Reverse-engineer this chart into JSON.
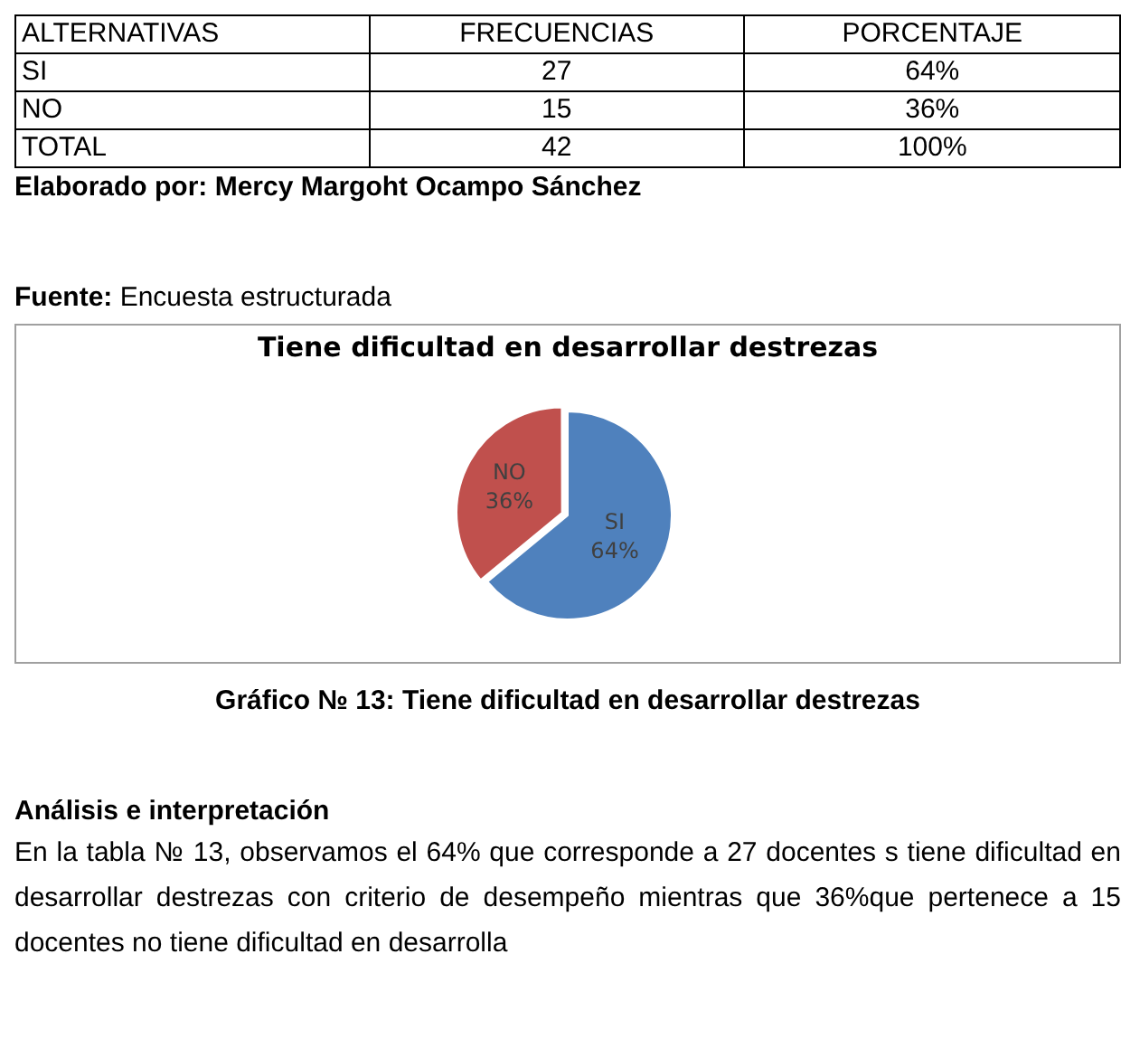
{
  "chart_data": {
    "type": "pie",
    "title": "Tiene dificultad en desarrollar destrezas",
    "categories": [
      "SI",
      "NO"
    ],
    "values": [
      64,
      36
    ],
    "value_labels": [
      "64%",
      "36%"
    ],
    "colors": [
      "#4f81bd",
      "#c0504d"
    ],
    "legend": false,
    "annotations": [
      "ALTERNATIVAS\tFRECUENCIAS\tPORCENTAJE",
      "SI\t27\t64%",
      "NO\t15\t36%",
      "TOTAL\t42\t100%",
      "Elaborado por: Mercy Margoht Ocampo Sánchez",
      "Fuente: Encuesta estructurada",
      "Gráfico  № 13: Tiene dificultad en desarrollar destrezas",
      "Análisis e interpretación",
      "En la tabla № 13, observamos  el 64% que corresponde a 27 docentes s tiene dificultad en desarrollar destrezas con criterio de desempeño mientras que  36%que pertenece a 15 docentes no tiene dificultad en desarrolla"
    ]
  }
}
